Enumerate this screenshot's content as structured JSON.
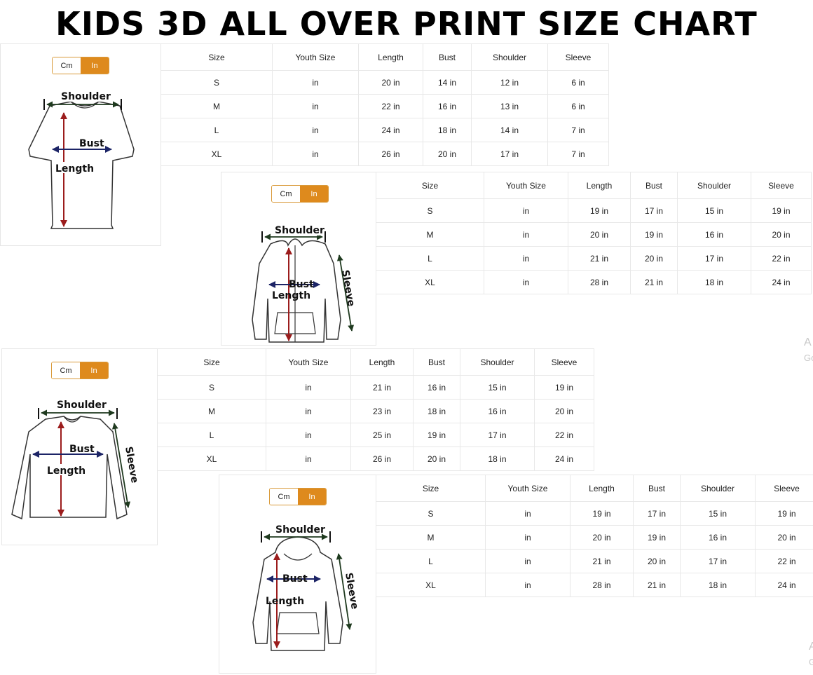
{
  "title": "KIDS 3D ALL OVER PRINT SIZE CHART",
  "colors": {
    "toggle_active": "#de8a1d",
    "toggle_border": "#d99a3a",
    "length_arrow": "#9b1c1c",
    "bust_arrow": "#1c2466",
    "shoulder_arrow": "#1f3a1f"
  },
  "unit_toggle": {
    "cm": "Cm",
    "in": "In",
    "selected": "In"
  },
  "charts": [
    {
      "garment": "t-shirt",
      "labels": {
        "shoulder": "Shoulder",
        "bust": "Bust",
        "length": "Length"
      },
      "headers": [
        "Size",
        "Youth Size",
        "Length",
        "Bust",
        "Shoulder",
        "Sleeve"
      ],
      "rows": [
        [
          "S",
          "in",
          "20 in",
          "14 in",
          "12 in",
          "6 in"
        ],
        [
          "M",
          "in",
          "22 in",
          "16 in",
          "13 in",
          "6 in"
        ],
        [
          "L",
          "in",
          "24 in",
          "18 in",
          "14 in",
          "7 in"
        ],
        [
          "XL",
          "in",
          "26 in",
          "20 in",
          "17 in",
          "7 in"
        ]
      ]
    },
    {
      "garment": "zip-hoodie",
      "labels": {
        "shoulder": "Shoulder",
        "bust": "Bust",
        "length": "Length",
        "sleeve": "Sleeve"
      },
      "headers": [
        "Size",
        "Youth Size",
        "Length",
        "Bust",
        "Shoulder",
        "Sleeve"
      ],
      "rows": [
        [
          "S",
          "in",
          "19 in",
          "17 in",
          "15 in",
          "19 in"
        ],
        [
          "M",
          "in",
          "20 in",
          "19 in",
          "16 in",
          "20 in"
        ],
        [
          "L",
          "in",
          "21 in",
          "20 in",
          "17 in",
          "22 in"
        ],
        [
          "XL",
          "in",
          "28 in",
          "21 in",
          "18 in",
          "24 in"
        ]
      ]
    },
    {
      "garment": "long-sleeve",
      "labels": {
        "shoulder": "Shoulder",
        "bust": "Bust",
        "length": "Length",
        "sleeve": "Sleeve"
      },
      "headers": [
        "Size",
        "Youth Size",
        "Length",
        "Bust",
        "Shoulder",
        "Sleeve"
      ],
      "rows": [
        [
          "S",
          "in",
          "21 in",
          "16 in",
          "15 in",
          "19 in"
        ],
        [
          "M",
          "in",
          "23 in",
          "18 in",
          "16 in",
          "20 in"
        ],
        [
          "L",
          "in",
          "25 in",
          "19 in",
          "17 in",
          "22 in"
        ],
        [
          "XL",
          "in",
          "26 in",
          "20 in",
          "18 in",
          "24 in"
        ]
      ]
    },
    {
      "garment": "pullover-hoodie",
      "labels": {
        "shoulder": "Shoulder",
        "bust": "Bust",
        "length": "Length",
        "sleeve": "Sleeve"
      },
      "headers": [
        "Size",
        "Youth Size",
        "Length",
        "Bust",
        "Shoulder",
        "Sleeve"
      ],
      "rows": [
        [
          "S",
          "in",
          "19 in",
          "17 in",
          "15 in",
          "19 in"
        ],
        [
          "M",
          "in",
          "20 in",
          "19 in",
          "16 in",
          "20 in"
        ],
        [
          "L",
          "in",
          "21 in",
          "20 in",
          "17 in",
          "22 in"
        ],
        [
          "XL",
          "in",
          "28 in",
          "21 in",
          "18 in",
          "24 in"
        ]
      ]
    }
  ],
  "watermark": [
    "A",
    "Go",
    "A",
    "G"
  ]
}
